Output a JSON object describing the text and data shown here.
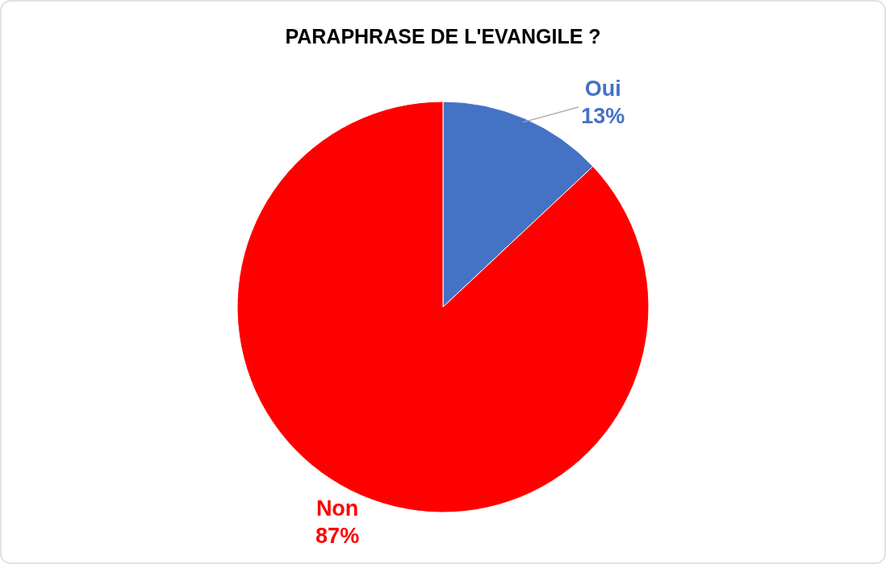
{
  "chart_data": {
    "type": "pie",
    "title": "PARAPHRASE DE L'EVANGILE ?",
    "categories": [
      "Oui",
      "Non"
    ],
    "values": [
      13,
      87
    ],
    "value_labels": [
      "13%",
      "87%"
    ],
    "colors": [
      "#4472c4",
      "#ff0000"
    ]
  }
}
